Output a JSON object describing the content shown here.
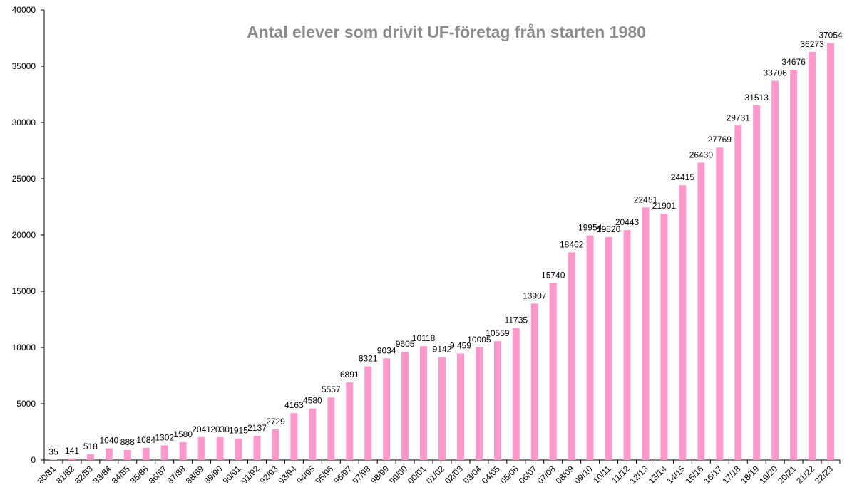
{
  "chart_data": {
    "type": "bar",
    "title": "Antal elever som drivit UF-företag från starten 1980",
    "xlabel": "",
    "ylabel": "",
    "ylim": [
      0,
      40000
    ],
    "yticks": [
      0,
      5000,
      10000,
      15000,
      20000,
      25000,
      30000,
      35000,
      40000
    ],
    "grid": false,
    "bar_color": "#FF99CC",
    "categories": [
      "80/81",
      "81/82",
      "82/83",
      "83/84",
      "84/85",
      "85/86",
      "86/87",
      "87/88",
      "88/89",
      "89/90",
      "90/91",
      "91/92",
      "92/93",
      "93/94",
      "94/95",
      "95/96",
      "96/97",
      "97/98",
      "98/99",
      "99/00",
      "00/01",
      "01/02",
      "02/03",
      "03/04",
      "04/05",
      "05/06",
      "06/07",
      "07/08",
      "08/09",
      "09/10",
      "10/11",
      "11/12",
      "12/13",
      "13/14",
      "14/15",
      "15/16",
      "16/17",
      "17/18",
      "18/19",
      "19/20",
      "20/21",
      "21/22",
      "22/23"
    ],
    "values": [
      35,
      141,
      518,
      1040,
      888,
      1084,
      1302,
      1580,
      2041,
      2030,
      1915,
      2137,
      2729,
      4163,
      4580,
      5557,
      6891,
      8321,
      9034,
      9605,
      10118,
      9142,
      9459,
      10005,
      10559,
      11735,
      13907,
      15740,
      18462,
      19954,
      19820,
      20443,
      22451,
      21901,
      24415,
      26430,
      27769,
      29731,
      31513,
      33706,
      34676,
      36273,
      37054
    ],
    "data_labels": [
      "35",
      "141",
      "518",
      "1040",
      "888",
      "1084",
      "1302",
      "1580",
      "2041",
      "2030",
      "1915",
      "2137",
      "2729",
      "4163",
      "4580",
      "5557",
      "6891",
      "8321",
      "9034",
      "9605",
      "10118",
      "9142",
      "9 459",
      "10005",
      "10559",
      "11735",
      "13907",
      "15740",
      "18462",
      "19954",
      "19820",
      "20443",
      "22451",
      "21901",
      "24415",
      "26430",
      "27769",
      "29731",
      "31513",
      "33706",
      "34676",
      "36273",
      "37054"
    ]
  }
}
